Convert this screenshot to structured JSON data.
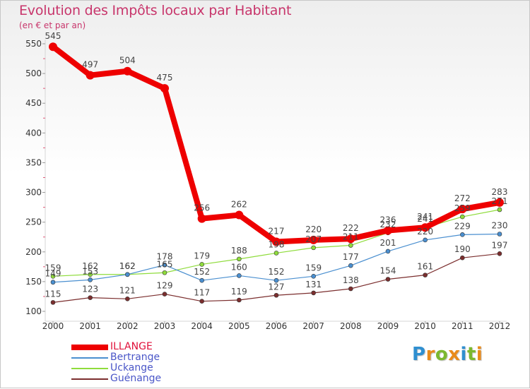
{
  "title": "Evolution des Impôts locaux par Habitant",
  "subtitle": "(en € et par an)",
  "logo": {
    "letters": [
      "P",
      "r",
      "o",
      "x",
      "i",
      "t",
      "i"
    ],
    "colors": [
      "#2f8fd0",
      "#e98b1b",
      "#7cb82f",
      "#e98b1b",
      "#2f8fd0",
      "#7cb82f",
      "#e98b1b"
    ]
  },
  "chart_data": {
    "type": "line",
    "title": "Evolution des Impôts locaux par Habitant",
    "subtitle": "(en € et par an)",
    "xlabel": "",
    "ylabel": "",
    "x": [
      "2000",
      "2001",
      "2002",
      "2003",
      "2004",
      "2005",
      "2006",
      "2007",
      "2008",
      "2009",
      "2010",
      "2011",
      "2012"
    ],
    "ylim": [
      100,
      550
    ],
    "yticks": [
      100,
      150,
      200,
      250,
      300,
      350,
      400,
      450,
      500,
      550
    ],
    "grid": false,
    "legend": "bottom-left",
    "series": [
      {
        "name": "Guénange",
        "color": "#7b2e2e",
        "values": [
          115,
          123,
          121,
          129,
          117,
          119,
          127,
          131,
          138,
          154,
          161,
          190,
          197
        ]
      },
      {
        "name": "Uckange",
        "color": "#8fdc3c",
        "values": [
          159,
          162,
          162,
          165,
          179,
          188,
          198,
          207,
          211,
          232,
          241,
          259,
          271
        ]
      },
      {
        "name": "Bertrange",
        "color": "#4a8fd0",
        "values": [
          149,
          153,
          162,
          178,
          152,
          160,
          152,
          159,
          177,
          201,
          220,
          229,
          230
        ]
      },
      {
        "name": "ILLANGE",
        "color": "#ee0000",
        "values": [
          545,
          497,
          504,
          475,
          256,
          262,
          217,
          220,
          222,
          236,
          241,
          272,
          283
        ]
      }
    ],
    "legend_order": [
      "ILLANGE",
      "Bertrange",
      "Uckange",
      "Guénange"
    ]
  }
}
